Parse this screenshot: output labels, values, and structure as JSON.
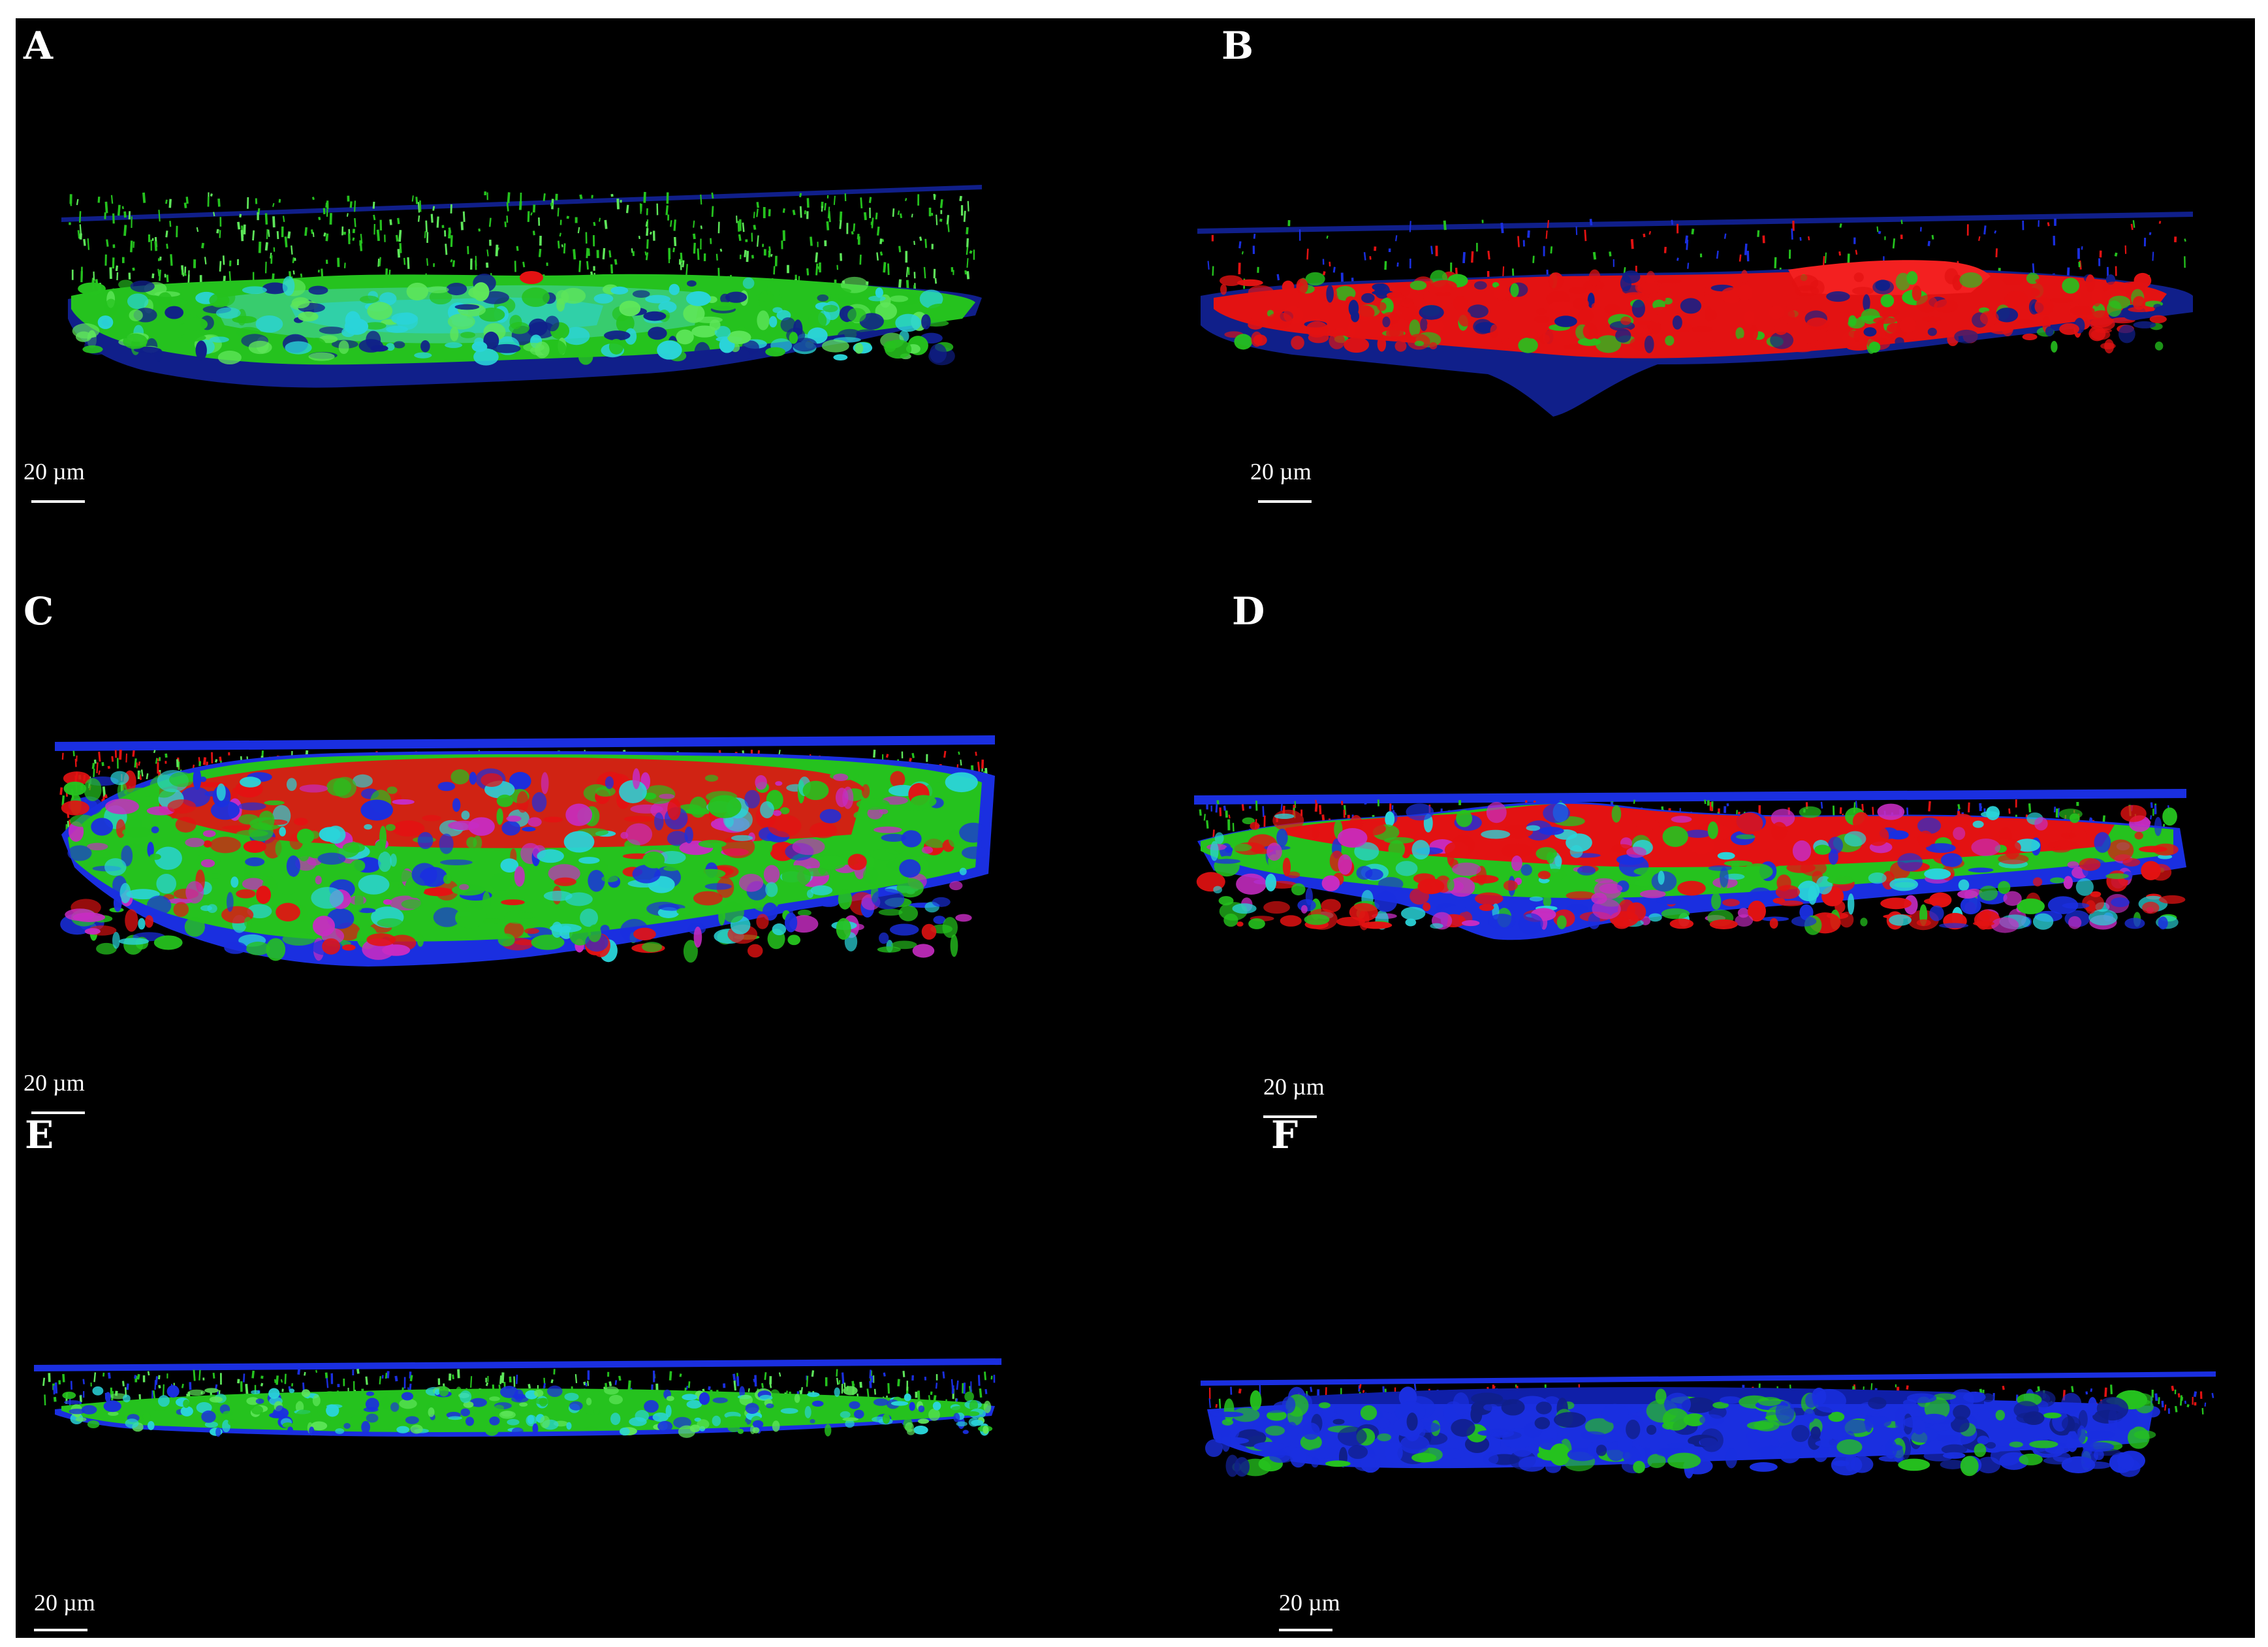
{
  "figure": {
    "background": "#000000",
    "colors": {
      "blue": "#1a2fe0",
      "blue_dark": "#101f8a",
      "green": "#25c21e",
      "green_light": "#5ee65a",
      "red": "#e31212",
      "cyan": "#2ad4d9",
      "magenta": "#c72cc2"
    },
    "panels": [
      {
        "letter": "A",
        "scale": "20 µm",
        "dominant": "green"
      },
      {
        "letter": "B",
        "scale": "20 µm",
        "dominant": "red"
      },
      {
        "letter": "C",
        "scale": "20 µm",
        "dominant": "red-green"
      },
      {
        "letter": "D",
        "scale": "20 µm",
        "dominant": "red"
      },
      {
        "letter": "E",
        "scale": "20 µm",
        "dominant": "green"
      },
      {
        "letter": "F",
        "scale": "20 µm",
        "dominant": "blue"
      }
    ]
  }
}
